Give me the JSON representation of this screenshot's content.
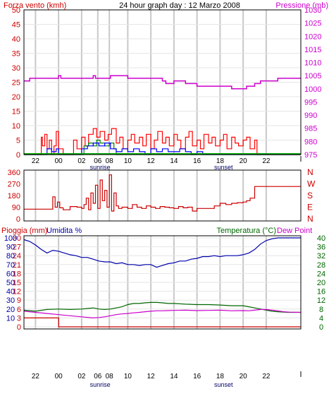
{
  "colors": {
    "wind_speed": "#ff0000",
    "wind_gust_alt": "#008000",
    "wind_avg": "#0000ff",
    "pressure": "#cc00cc",
    "direction": "#cc0000",
    "rain": "#cc0000",
    "humidity": "#0000aa",
    "temperature": "#006600",
    "dewpoint": "#cc00cc",
    "grid": "#c8c8c8",
    "frame": "#000000"
  },
  "x_ticks": [
    "22",
    "00",
    "02",
    "06",
    "08",
    "10",
    "12",
    "14",
    "16",
    "18",
    "20",
    "22"
  ],
  "x_tick_positions": [
    1,
    3,
    5,
    6.4,
    7.4,
    9,
    11,
    13,
    15,
    17,
    19,
    21
  ],
  "x_range": [
    0,
    24
  ],
  "markers": {
    "sunrise": "sunrise",
    "sunset": "sunset"
  },
  "marker_positions": {
    "sunrise": 6.6,
    "sunset": 17.3
  },
  "chart_data": [
    {
      "type": "line",
      "title": "24 hour graph day : 12 Marzo 2008",
      "left_axis_label": "Forza vento (kmh)",
      "right_axis_label": "Pressione (mb)",
      "left_ylim": [
        0,
        50
      ],
      "left_ticks": [
        "0",
        "5",
        "10",
        "15",
        "20",
        "25",
        "30",
        "35",
        "40",
        "45",
        "50"
      ],
      "right_ylim": [
        975,
        1030
      ],
      "right_ticks": [
        "975",
        "980",
        "985",
        "990",
        "995",
        "1000",
        "1005",
        "1010",
        "1015",
        "1020",
        "1025",
        "1030"
      ],
      "series": [
        {
          "axis": "right",
          "x": [
            0,
            0.5,
            3,
            3.2,
            5,
            6,
            6.2,
            7,
            7.5,
            9,
            11,
            12,
            12.3,
            13,
            14,
            15,
            16,
            17,
            18,
            18.8,
            19.3,
            20,
            20.5,
            21,
            22,
            24
          ],
          "values": [
            1003,
            1004,
            1005,
            1004,
            1004,
            1005,
            1004,
            1004,
            1005,
            1004,
            1004,
            1003,
            1002,
            1003,
            1002,
            1001,
            1001,
            1001,
            1000,
            1000,
            1001,
            1002,
            1003,
            1003,
            1004,
            1004
          ]
        },
        {
          "axis": "left",
          "x": [
            0,
            1.3,
            1.5,
            1.6,
            1.8,
            2.0,
            2.2,
            2.4,
            2.6,
            2.8,
            3.0,
            3.4,
            4.0,
            4.3,
            4.6,
            5.0,
            5.3,
            5.6,
            6.0,
            6.3,
            6.6,
            7.0,
            7.3,
            7.6,
            8.0,
            8.3,
            8.6,
            9.0,
            9.3,
            9.6,
            10.0,
            10.3,
            10.6,
            11.0,
            11.3,
            11.6,
            12.0,
            12.3,
            12.6,
            13.0,
            13.3,
            13.6,
            14.0,
            14.3,
            14.6,
            15.0,
            15.3,
            15.6,
            16.0,
            16.3,
            16.6,
            17.0,
            17.3,
            17.6,
            18.0,
            18.3,
            18.6,
            19.0,
            19.3,
            19.6,
            20.0,
            20.2,
            24
          ],
          "values": [
            0,
            0,
            6,
            3,
            7,
            2,
            5,
            0,
            3,
            8,
            2,
            0,
            0,
            5,
            2,
            6,
            3,
            7,
            9,
            6,
            8,
            5,
            7,
            9,
            4,
            6,
            2,
            5,
            7,
            4,
            6,
            3,
            7,
            2,
            5,
            8,
            4,
            6,
            3,
            7,
            5,
            2,
            6,
            8,
            3,
            5,
            2,
            7,
            4,
            6,
            3,
            5,
            7,
            2,
            6,
            4,
            3,
            5,
            6,
            2,
            5,
            0,
            0
          ]
        },
        {
          "axis": "left",
          "x": [
            0,
            5.0,
            5.2,
            5.6,
            6.0,
            6.3,
            6.6,
            7.0,
            7.4,
            7.8,
            8.0,
            24
          ],
          "values": [
            0,
            0,
            3,
            4,
            3,
            5,
            4,
            3,
            4,
            2,
            0,
            0
          ]
        },
        {
          "axis": "left",
          "x": [
            0,
            1.6,
            2.0,
            2.4,
            2.8,
            3.0,
            4.5,
            5.0,
            5.5,
            6.0,
            6.5,
            7.0,
            7.5,
            8.0,
            8.5,
            9.0,
            9.5,
            10.0,
            10.5,
            11.0,
            11.5,
            12.0,
            12.5,
            13.0,
            13.5,
            14.0,
            14.5,
            15.0,
            15.5,
            16.0,
            24
          ],
          "values": [
            0,
            0,
            2,
            1,
            2,
            0,
            0,
            2,
            3,
            4,
            3,
            4,
            2,
            1,
            2,
            1,
            2,
            1,
            0,
            2,
            1,
            2,
            1,
            1,
            2,
            1,
            0,
            1,
            0,
            0,
            0
          ]
        }
      ]
    },
    {
      "type": "line",
      "left_ylim": [
        0,
        360
      ],
      "left_ticks": [
        "0",
        "90",
        "180",
        "270",
        "360"
      ],
      "right_letters": [
        "N",
        "W",
        "S",
        "E",
        "N"
      ],
      "series": [
        {
          "x": [
            0,
            2.3,
            2.5,
            2.7,
            2.9,
            3.1,
            3.4,
            4.0,
            4.6,
            5.0,
            5.2,
            5.4,
            5.6,
            5.8,
            6.0,
            6.2,
            6.4,
            6.6,
            6.8,
            7.0,
            7.2,
            7.4,
            7.6,
            7.8,
            8.0,
            8.2,
            8.5,
            9.0,
            9.4,
            9.8,
            10.2,
            10.6,
            11.0,
            11.4,
            11.8,
            12.2,
            12.6,
            13.0,
            13.4,
            13.8,
            14.2,
            14.6,
            15.0,
            15.5,
            16.0,
            16.5,
            17.0,
            17.5,
            18.0,
            18.5,
            19.0,
            19.3,
            19.6,
            20.0,
            24
          ],
          "values": [
            75,
            75,
            170,
            90,
            130,
            85,
            70,
            95,
            90,
            80,
            110,
            160,
            70,
            200,
            120,
            260,
            80,
            300,
            140,
            220,
            90,
            340,
            60,
            200,
            100,
            80,
            90,
            80,
            110,
            90,
            80,
            100,
            90,
            80,
            95,
            90,
            85,
            80,
            95,
            85,
            90,
            60,
            80,
            80,
            80,
            100,
            120,
            110,
            120,
            125,
            130,
            140,
            160,
            250,
            250
          ]
        }
      ]
    },
    {
      "type": "line",
      "title_left": "Pioggia (mm)",
      "title_mid": "Umidita %",
      "title_right_a": "Temperatura (°C)",
      "title_right_b": "Dew Point",
      "rain_ticks": [
        "0",
        "3",
        "6",
        "9",
        "12",
        "15",
        "18",
        "21",
        "24",
        "27",
        "30"
      ],
      "humidity_ticks": [
        "10",
        "20",
        "30",
        "40",
        "50",
        "60",
        "70",
        "80",
        "90",
        "100"
      ],
      "temp_ticks": [
        "0",
        "4",
        "8",
        "12",
        "16",
        "20",
        "24",
        "28",
        "32",
        "36",
        "40"
      ],
      "temp_ylim": [
        0,
        40
      ],
      "series": [
        {
          "name": "Pioggia (mm)",
          "axis": "rain",
          "x": [
            0,
            3,
            3.01,
            24
          ],
          "values": [
            3,
            3,
            0,
            0
          ]
        },
        {
          "name": "Umidita %",
          "axis": "humidity",
          "x": [
            0,
            0.5,
            1,
            1.5,
            2,
            2.5,
            3,
            3.5,
            4,
            4.5,
            5,
            5.5,
            6,
            6.5,
            7,
            7.5,
            8,
            8.5,
            9,
            9.5,
            10,
            10.5,
            11,
            11.5,
            12,
            12.5,
            13,
            13.5,
            14,
            14.5,
            15,
            15.5,
            16,
            16.5,
            17,
            17.5,
            18,
            18.5,
            19,
            19.5,
            20,
            20.5,
            21,
            21.5,
            22,
            23,
            24
          ],
          "values": [
            98,
            96,
            92,
            87,
            83,
            86,
            85,
            83,
            81,
            80,
            78,
            78,
            76,
            74,
            73,
            73,
            71,
            72,
            70,
            70,
            69,
            70,
            70,
            67,
            69,
            71,
            72,
            74,
            74,
            76,
            77,
            79,
            79,
            80,
            79,
            80,
            80,
            80,
            81,
            83,
            87,
            93,
            97,
            99,
            100,
            100,
            100
          ]
        },
        {
          "name": "Temperatura (°C)",
          "axis": "temp",
          "x": [
            0,
            1,
            2,
            3,
            4,
            5,
            6,
            6.5,
            7,
            7.5,
            8,
            8.5,
            9,
            9.5,
            10,
            10.5,
            11,
            11.5,
            12,
            12.5,
            13,
            14,
            15,
            16,
            17,
            18,
            19,
            19.5,
            20,
            20.5,
            21,
            21.5,
            22,
            22.5,
            23,
            24
          ],
          "values": [
            7.5,
            7,
            7.8,
            8,
            7.8,
            8,
            8.5,
            8,
            7.8,
            8,
            8.5,
            9,
            10,
            10.5,
            10.5,
            10.8,
            11,
            11,
            10.8,
            10.5,
            10.5,
            10.2,
            10,
            10,
            9.8,
            9.5,
            9.5,
            9,
            8.5,
            8,
            7.5,
            7,
            6.8,
            6.6,
            6.5,
            6.5
          ]
        },
        {
          "name": "Dew Point",
          "axis": "temp",
          "x": [
            0,
            1,
            2,
            3,
            4,
            5,
            6,
            6.5,
            7,
            7.5,
            8,
            8.5,
            9,
            9.5,
            10,
            10.5,
            11,
            11.5,
            12,
            12.5,
            13,
            14,
            15,
            16,
            17,
            18,
            19,
            19.5,
            20,
            20.5,
            21,
            21.5,
            22,
            22.5,
            23,
            24
          ],
          "values": [
            7,
            6.5,
            6,
            5.5,
            5,
            4.5,
            4,
            4.2,
            4.5,
            5,
            5.5,
            5.8,
            6,
            6.3,
            6.5,
            6.8,
            7,
            7.2,
            7.2,
            7.3,
            7.4,
            7.5,
            7.3,
            7.4,
            7.5,
            7.2,
            7.3,
            7.2,
            7.5,
            7.8,
            7.8,
            7.5,
            7.2,
            6.8,
            6.6,
            6.5
          ]
        }
      ]
    }
  ]
}
